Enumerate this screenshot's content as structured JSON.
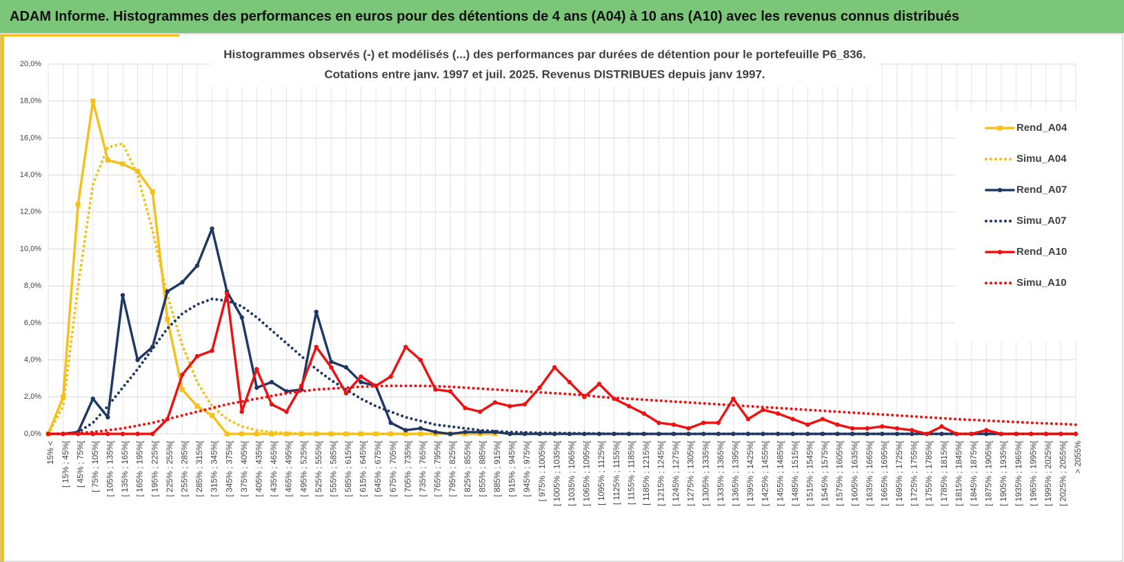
{
  "header": {
    "title": "ADAM Informe. Histogrammes des performances en euros pour des détentions de 4 ans (A04) à 10 ans (A10) avec les revenus connus distribués"
  },
  "chart_data": {
    "type": "line",
    "title": "Histogrammes observés (-) et modélisés (...) des performances par durées de détention pour le portefeuille P6_836.",
    "subtitle": "Cotations entre janv. 1997 et juil. 2025. Revenus DISTRIBUES depuis janv 1997.",
    "categories": [
      "15% <",
      "[ 15% ; 45%[",
      "[ 45% ; 75%[",
      "[ 75% ; 105%[",
      "[ 105% ; 135%[",
      "[ 135% ; 165%[",
      "[ 165% ; 195%[",
      "[ 195% ; 225%[",
      "[ 225% ; 255%[",
      "[ 255% ; 285%[",
      "[ 285% ; 315%[",
      "[ 315% ; 345%[",
      "[ 345% ; 375%[",
      "[ 375% ; 405%[",
      "[ 405% ; 435%[",
      "[ 435% ; 465%[",
      "[ 465% ; 495%[",
      "[ 495% ; 525%[",
      "[ 525% ; 555%[",
      "[ 555% ; 585%[",
      "[ 585% ; 615%[",
      "[ 615% ; 645%[",
      "[ 645% ; 675%[",
      "[ 675% ; 705%[",
      "[ 705% ; 735%[",
      "[ 735% ; 765%[",
      "[ 765% ; 795%[",
      "[ 795% ; 825%[",
      "[ 825% ; 855%[",
      "[ 855% ; 885%[",
      "[ 885% ; 915%[",
      "[ 915% ; 945%[",
      "[ 945% ; 975%[",
      "[ 975% ; 1005%[",
      "[ 1005% ; 1035%[",
      "[ 1035% ; 1065%[",
      "[ 1065% ; 1095%[",
      "[ 1095% ; 1125%[",
      "[ 1125% ; 1155%[",
      "[ 1155% ; 1185%[",
      "[ 1185% ; 1215%[",
      "[ 1215% ; 1245%[",
      "[ 1245% ; 1275%[",
      "[ 1275% ; 1305%[",
      "[ 1305% ; 1335%[",
      "[ 1335% ; 1365%[",
      "[ 1365% ; 1395%[",
      "[ 1395% ; 1425%[",
      "[ 1425% ; 1455%[",
      "[ 1455% ; 1485%[",
      "[ 1485% ; 1515%[",
      "[ 1515% ; 1545%[",
      "[ 1545% ; 1575%[",
      "[ 1575% ; 1605%[",
      "[ 1605% ; 1635%[",
      "[ 1635% ; 1665%[",
      "[ 1665% ; 1695%[",
      "[ 1695% ; 1725%[",
      "[ 1725% ; 1755%[",
      "[ 1755% ; 1785%[",
      "[ 1785% ; 1815%[",
      "[ 1815% ; 1845%[",
      "[ 1845% ; 1875%[",
      "[ 1875% ; 1905%[",
      "[ 1905% ; 1935%[",
      "[ 1935% ; 1965%[",
      "[ 1965% ; 1995%[",
      "[ 1995% ; 2025%[",
      "[ 2025% ; 2055%[",
      "> 2055%"
    ],
    "series": [
      {
        "name": "Rend_A04",
        "color": "#f5c018",
        "style": "solid",
        "marker": "square",
        "values": [
          0,
          2,
          12.4,
          18,
          14.8,
          14.6,
          14.2,
          13.1,
          6.2,
          2.4,
          1.5,
          1,
          0,
          0,
          0,
          0,
          0,
          0,
          0,
          0,
          0,
          0,
          0,
          0,
          0,
          0,
          0,
          0,
          0,
          0,
          0,
          null,
          null,
          null,
          null,
          null,
          null,
          null,
          null,
          null,
          null,
          null,
          null,
          null,
          null,
          null,
          null,
          null,
          null,
          null,
          null,
          null,
          null,
          null,
          null,
          null,
          null,
          null,
          null,
          null,
          null,
          null,
          null,
          null,
          null,
          null,
          null,
          null,
          null,
          null
        ]
      },
      {
        "name": "Simu_A04",
        "color": "#f5c018",
        "style": "dotted",
        "marker": null,
        "values": [
          0,
          1.5,
          8,
          13.5,
          15.5,
          15.7,
          14,
          11,
          7.5,
          4.8,
          2.8,
          1.5,
          0.8,
          0.4,
          0.2,
          0.1,
          0.05,
          0.02,
          0,
          0,
          0,
          0,
          0,
          0,
          0,
          0,
          0,
          0,
          0,
          0,
          0,
          null,
          null,
          null,
          null,
          null,
          null,
          null,
          null,
          null,
          null,
          null,
          null,
          null,
          null,
          null,
          null,
          null,
          null,
          null,
          null,
          null,
          null,
          null,
          null,
          null,
          null,
          null,
          null,
          null,
          null,
          null,
          null,
          null,
          null,
          null,
          null,
          null,
          null,
          null
        ]
      },
      {
        "name": "Rend_A07",
        "color": "#1f3864",
        "style": "solid",
        "marker": "circle",
        "values": [
          0,
          0,
          0.1,
          1.9,
          0.9,
          7.5,
          4,
          4.7,
          7.7,
          8.2,
          9.1,
          11.1,
          7.7,
          6.3,
          2.5,
          2.8,
          2.3,
          2.4,
          6.6,
          3.9,
          3.6,
          2.8,
          2.6,
          0.6,
          0.2,
          0.3,
          0.1,
          0,
          0.1,
          0.1,
          0.1,
          0,
          0,
          0,
          0,
          0,
          0,
          0,
          0,
          0,
          0,
          0,
          0,
          0,
          0,
          0,
          0,
          0,
          0,
          0,
          0,
          0,
          0,
          0,
          0,
          0,
          0,
          0,
          0,
          0,
          0,
          0,
          0,
          0,
          0,
          0,
          0,
          0,
          0,
          0
        ]
      },
      {
        "name": "Simu_A07",
        "color": "#1f3864",
        "style": "dotted",
        "marker": null,
        "values": [
          0,
          0,
          0.1,
          0.6,
          1.5,
          2.5,
          3.5,
          4.6,
          5.7,
          6.5,
          7,
          7.3,
          7.2,
          6.9,
          6.3,
          5.6,
          4.9,
          4.2,
          3.5,
          2.9,
          2.4,
          1.9,
          1.5,
          1.2,
          0.9,
          0.7,
          0.5,
          0.4,
          0.3,
          0.2,
          0.15,
          0.1,
          0.08,
          0.06,
          0.05,
          0.04,
          0.03,
          0.02,
          0.01,
          0,
          0,
          0,
          0,
          0,
          0,
          0,
          0,
          0,
          0,
          0,
          0,
          0,
          0,
          0,
          0,
          0,
          0,
          0,
          0,
          0,
          0,
          0,
          0,
          0,
          0,
          0,
          0,
          0,
          0,
          0
        ]
      },
      {
        "name": "Rend_A10",
        "color": "#ee1111",
        "style": "solid",
        "marker": "circle",
        "values": [
          0,
          0,
          0,
          0,
          0,
          0,
          0,
          0,
          0.8,
          3.2,
          4.2,
          4.5,
          7.6,
          1.2,
          3.5,
          1.6,
          1.2,
          2.6,
          4.7,
          3.6,
          2.2,
          3.1,
          2.6,
          3.1,
          4.7,
          4,
          2.4,
          2.3,
          1.4,
          1.2,
          1.7,
          1.5,
          1.6,
          2.5,
          3.6,
          2.8,
          2,
          2.7,
          1.9,
          1.5,
          1.1,
          0.6,
          0.5,
          0.3,
          0.6,
          0.6,
          1.9,
          0.8,
          1.3,
          1.1,
          0.8,
          0.5,
          0.8,
          0.5,
          0.3,
          0.3,
          0.4,
          0.3,
          0.2,
          0,
          0.4,
          0,
          0,
          0.2,
          0,
          0,
          0,
          0,
          0,
          0
        ]
      },
      {
        "name": "Simu_A10",
        "color": "#ee1111",
        "style": "dotted",
        "marker": null,
        "values": [
          0,
          0.02,
          0.05,
          0.1,
          0.2,
          0.3,
          0.45,
          0.6,
          0.8,
          1,
          1.2,
          1.4,
          1.6,
          1.75,
          1.9,
          2.05,
          2.2,
          2.3,
          2.4,
          2.45,
          2.5,
          2.55,
          2.58,
          2.6,
          2.6,
          2.6,
          2.58,
          2.55,
          2.5,
          2.45,
          2.4,
          2.35,
          2.3,
          2.25,
          2.2,
          2.15,
          2.1,
          2,
          1.95,
          1.9,
          1.85,
          1.8,
          1.75,
          1.7,
          1.65,
          1.6,
          1.55,
          1.5,
          1.45,
          1.4,
          1.35,
          1.3,
          1.25,
          1.2,
          1.15,
          1.1,
          1.05,
          1,
          0.95,
          0.9,
          0.85,
          0.8,
          0.76,
          0.72,
          0.68,
          0.64,
          0.6,
          0.57,
          0.54,
          0.5
        ]
      }
    ],
    "ylim": [
      0,
      20
    ],
    "yticks": [
      {
        "value": 0,
        "label": "0,0%"
      },
      {
        "value": 2,
        "label": "2,0%"
      },
      {
        "value": 4,
        "label": "4,0%"
      },
      {
        "value": 6,
        "label": "6,0%"
      },
      {
        "value": 8,
        "label": "8,0%"
      },
      {
        "value": 10,
        "label": "10,0%"
      },
      {
        "value": 12,
        "label": "12,0%"
      },
      {
        "value": 14,
        "label": "14,0%"
      },
      {
        "value": 16,
        "label": "16,0%"
      },
      {
        "value": 18,
        "label": "18,0%"
      },
      {
        "value": 20,
        "label": "20,0%"
      }
    ],
    "grid": true,
    "legend": "right"
  }
}
